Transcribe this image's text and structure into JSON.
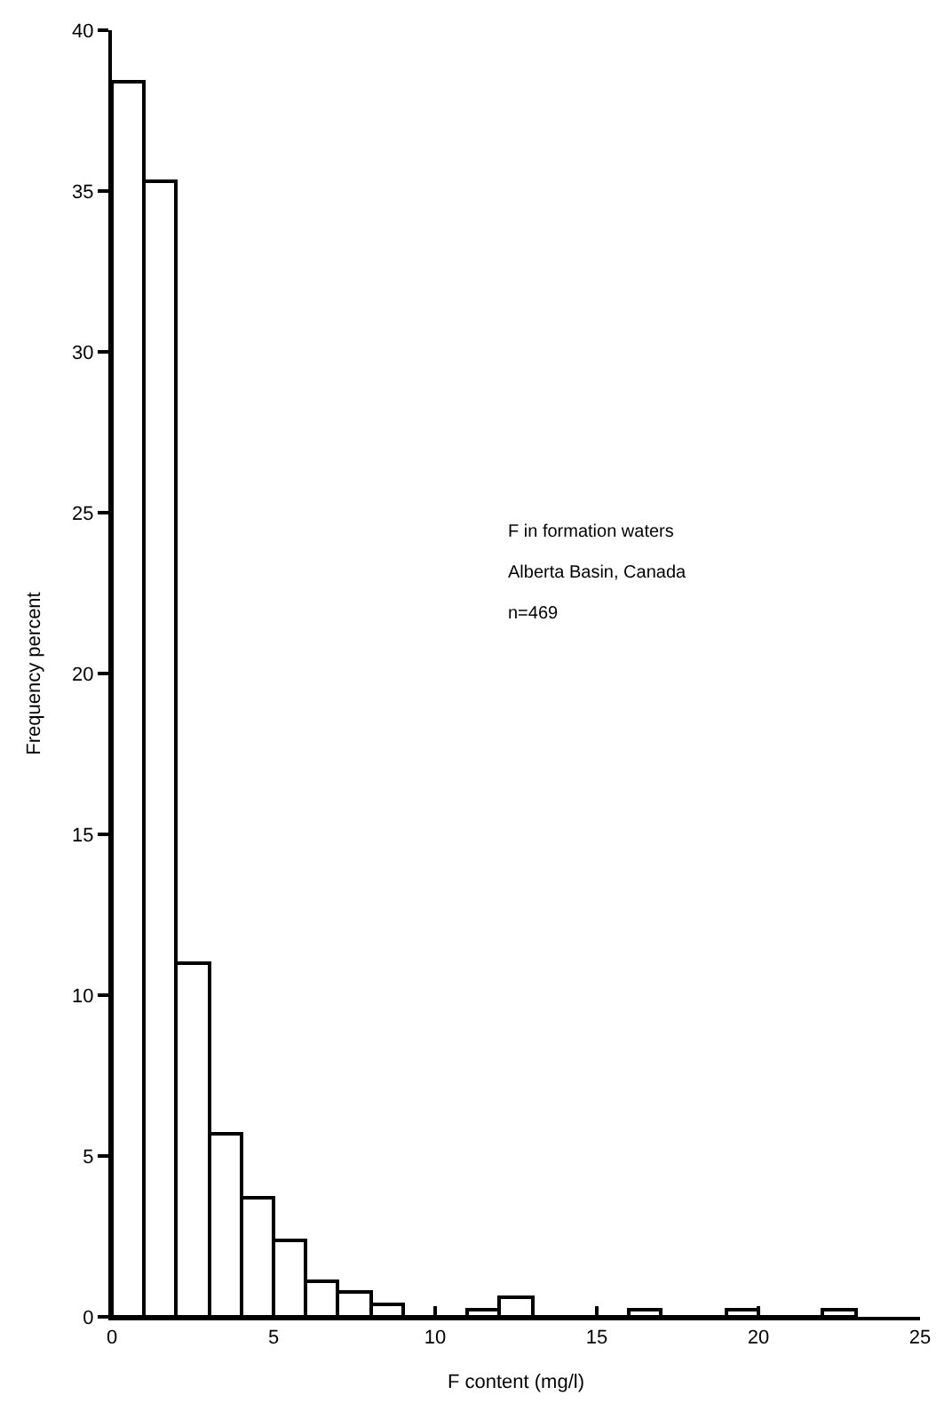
{
  "chart_data": {
    "type": "histogram",
    "xlabel": "F content (mg/l)",
    "ylabel": "Frequency percent",
    "bins": [
      0,
      1,
      2,
      3,
      4,
      5,
      6,
      7,
      8,
      9,
      10,
      11,
      12,
      13,
      14,
      15,
      16,
      17,
      18,
      19,
      20,
      21,
      22,
      23
    ],
    "values": [
      38.4,
      35.3,
      11.0,
      5.7,
      3.7,
      2.4,
      1.1,
      0.8,
      0.4,
      0,
      0,
      0.2,
      0.6,
      0,
      0,
      0,
      0.2,
      0,
      0,
      0.2,
      0,
      0,
      0.2
    ],
    "color": "#000000",
    "xlim": [
      0,
      25
    ],
    "xticks": [
      0,
      5,
      10,
      15,
      20,
      25
    ],
    "ylim": [
      0,
      40
    ],
    "yticks": [
      0,
      5,
      10,
      15,
      20,
      25,
      30,
      35,
      40
    ],
    "annotations": [
      "F in formation waters",
      "Alberta Basin, Canada",
      "n=469"
    ]
  }
}
